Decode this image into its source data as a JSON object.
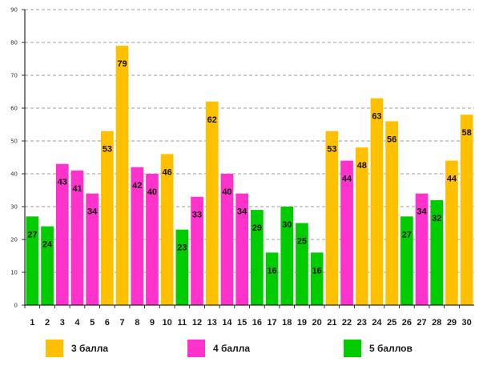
{
  "chart_data": {
    "type": "bar",
    "categories": [
      "1",
      "2",
      "3",
      "4",
      "5",
      "6",
      "7",
      "8",
      "9",
      "10",
      "11",
      "12",
      "13",
      "14",
      "15",
      "16",
      "17",
      "18",
      "19",
      "20",
      "21",
      "22",
      "23",
      "24",
      "25",
      "26",
      "27",
      "28",
      "29",
      "30"
    ],
    "values": [
      27,
      24,
      43,
      41,
      34,
      53,
      79,
      42,
      40,
      46,
      23,
      33,
      62,
      40,
      34,
      29,
      16,
      30,
      25,
      16,
      53,
      44,
      48,
      63,
      56,
      27,
      34,
      32,
      44,
      58
    ],
    "groups": [
      5,
      5,
      4,
      4,
      4,
      3,
      3,
      4,
      4,
      3,
      5,
      4,
      3,
      4,
      4,
      5,
      5,
      5,
      5,
      5,
      3,
      4,
      3,
      3,
      3,
      5,
      4,
      5,
      3,
      3
    ],
    "yticks": [
      0,
      10,
      20,
      30,
      40,
      50,
      60,
      70,
      80,
      90
    ],
    "ylim": [
      0,
      90
    ],
    "grid": true,
    "legend_position": "bottom",
    "legend": [
      {
        "group": 3,
        "label": "3 балла",
        "color": "#FFC000"
      },
      {
        "group": 4,
        "label": "4 балла",
        "color": "#FF33CC"
      },
      {
        "group": 5,
        "label": "5 баллов",
        "color": "#00CC00"
      }
    ]
  }
}
